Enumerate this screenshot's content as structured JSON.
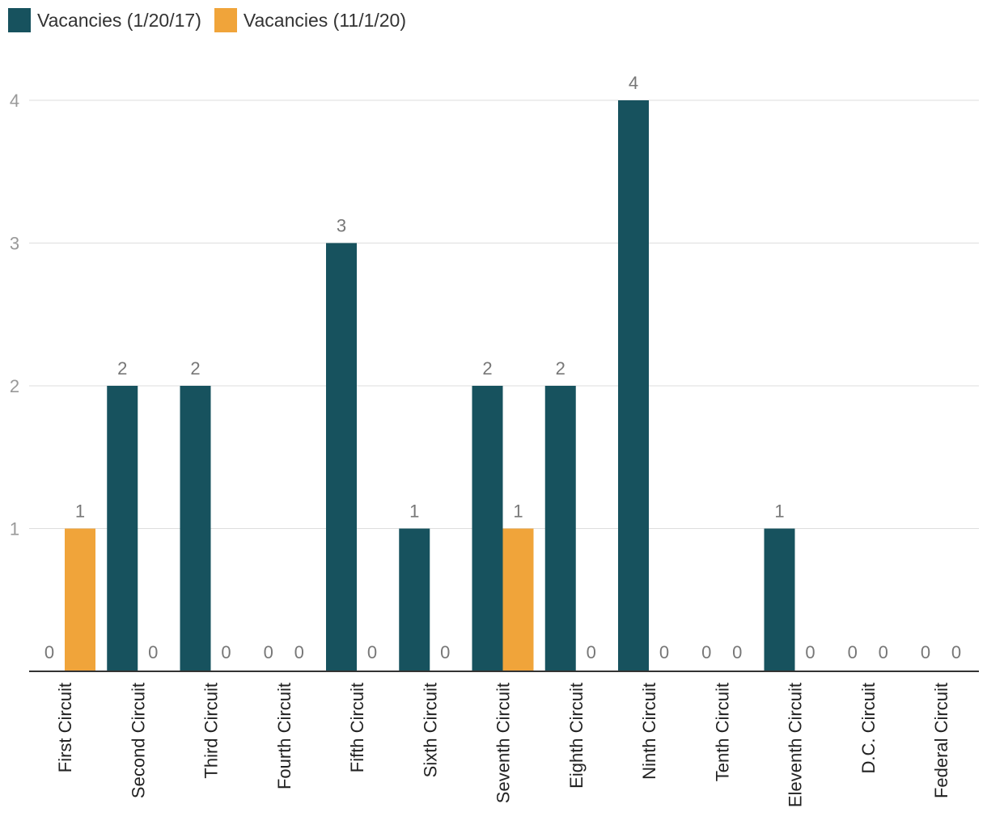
{
  "chart_data": {
    "type": "bar",
    "categories": [
      "First Circuit",
      "Second Circuit",
      "Third Circuit",
      "Fourth Circuit",
      "Fifth Circuit",
      "Sixth Circuit",
      "Seventh Circuit",
      "Eighth Circuit",
      "Ninth Circuit",
      "Tenth Circuit",
      "Eleventh Circuit",
      "D.C. Circuit",
      "Federal Circuit"
    ],
    "series": [
      {
        "name": "Vacancies (1/20/17)",
        "color": "#17525e",
        "values": [
          0,
          2,
          2,
          0,
          3,
          1,
          2,
          2,
          4,
          0,
          1,
          0,
          0
        ]
      },
      {
        "name": "Vacancies (11/1/20)",
        "color": "#f0a43a",
        "values": [
          1,
          0,
          0,
          0,
          0,
          0,
          1,
          0,
          0,
          0,
          0,
          0,
          0
        ]
      }
    ],
    "yticks": [
      1,
      2,
      3,
      4
    ],
    "ylim": [
      0,
      4
    ],
    "grid": true,
    "legend_position": "top-left",
    "title": "",
    "xlabel": "",
    "ylabel": ""
  }
}
